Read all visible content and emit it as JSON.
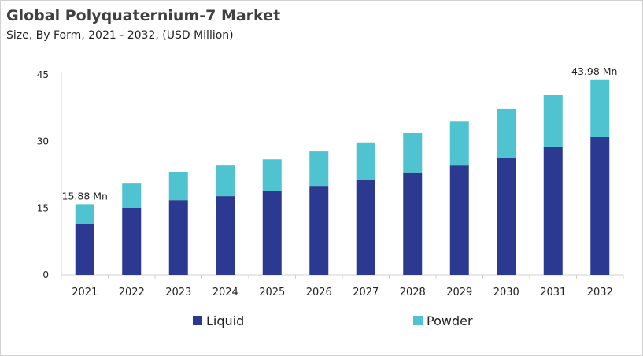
{
  "chart_data": {
    "type": "bar",
    "stacked": true,
    "title": "Global Polyquaternium-7 Market",
    "subtitle": "Size, By Form, 2021 - 2032, (USD Million)",
    "categories": [
      "2021",
      "2022",
      "2023",
      "2024",
      "2025",
      "2026",
      "2027",
      "2028",
      "2029",
      "2030",
      "2031",
      "2032"
    ],
    "series": [
      {
        "name": "Liquid",
        "color": "#2b3990",
        "values": [
          11.5,
          15.1,
          16.8,
          17.7,
          18.8,
          20.0,
          21.3,
          22.9,
          24.6,
          26.4,
          28.7,
          31.0
        ]
      },
      {
        "name": "Powder",
        "color": "#4fc3cf",
        "values": [
          4.38,
          5.6,
          6.4,
          6.9,
          7.2,
          7.8,
          8.5,
          9.0,
          9.9,
          11.0,
          11.7,
          12.98
        ]
      }
    ],
    "yticks": [
      0,
      15,
      30,
      45
    ],
    "ylim": [
      0,
      45
    ],
    "grid": false,
    "legend": "bottom",
    "annotations": [
      {
        "category": "2021",
        "text": "15.88  Mn"
      },
      {
        "category": "2032",
        "text": "43.98  Mn"
      }
    ]
  }
}
